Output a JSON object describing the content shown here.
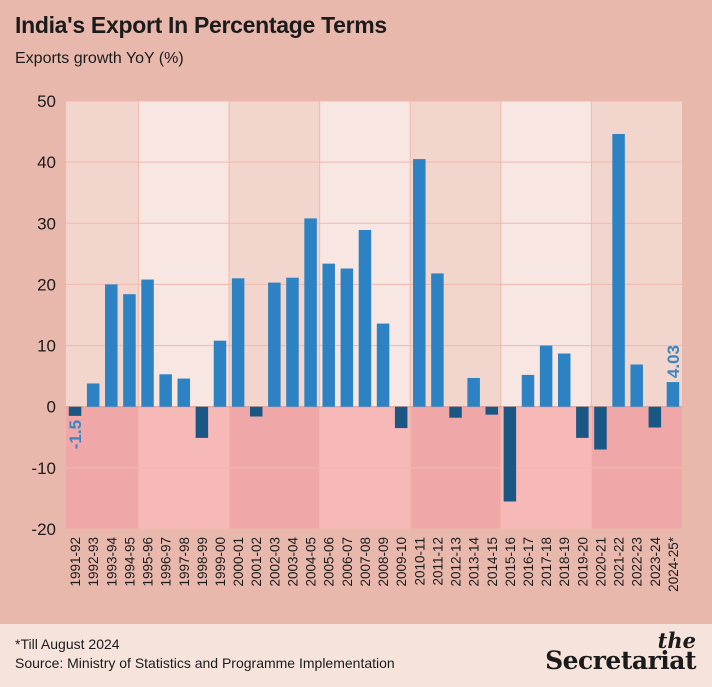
{
  "title": "India's Export In Percentage Terms",
  "subtitle": "Exports growth YoY (%)",
  "footnote": "*Till August 2024",
  "source": "Source: Ministry of Statistics and Programme Implementation",
  "brand": {
    "prefix": "the",
    "name": "Secretariat"
  },
  "colors": {
    "positive_bar": "#2c82c3",
    "negative_bar": "#1a5784",
    "label": "#3b86c0",
    "band_dark": "#f2d5cd",
    "band_light": "#f8e6e2",
    "negative_dark": "#f0a7a7",
    "negative_light": "#f7b9b8",
    "gridline": "#efb9ac"
  },
  "chart_data": {
    "type": "bar",
    "title": "India's Export In Percentage Terms",
    "ylabel": "Exports growth YoY (%)",
    "xlabel": "",
    "ylim": [
      -20,
      50
    ],
    "yticks": [
      -20,
      -10,
      0,
      10,
      20,
      30,
      40,
      50
    ],
    "grid": true,
    "categories": [
      "1991-92",
      "1992-93",
      "1993-94",
      "1994-95",
      "1995-96",
      "1996-97",
      "1997-98",
      "1998-99",
      "1999-00",
      "2000-01",
      "2001-02",
      "2002-03",
      "2003-04",
      "2004-05",
      "2005-06",
      "2006-07",
      "2007-08",
      "2008-09",
      "2009-10",
      "2010-11",
      "2011-12",
      "2012-13",
      "2013-14",
      "2014-15",
      "2015-16",
      "2016-17",
      "2017-18",
      "2018-19",
      "2019-20",
      "2020-21",
      "2021-22",
      "2022-23",
      "2023-24",
      "2024-25*"
    ],
    "values": [
      -1.5,
      3.8,
      20.0,
      18.4,
      20.8,
      5.3,
      4.6,
      -5.1,
      10.8,
      21.0,
      -1.6,
      20.3,
      21.1,
      30.8,
      23.4,
      22.6,
      28.9,
      13.6,
      -3.5,
      40.5,
      21.8,
      -1.8,
      4.7,
      -1.3,
      -15.5,
      5.2,
      10.0,
      8.7,
      -5.1,
      -7.0,
      44.6,
      6.9,
      -3.4,
      4.03
    ],
    "data_labels": [
      {
        "category": "1991-92",
        "text": "-1.5"
      },
      {
        "category": "2024-25*",
        "text": "4.03"
      }
    ]
  }
}
